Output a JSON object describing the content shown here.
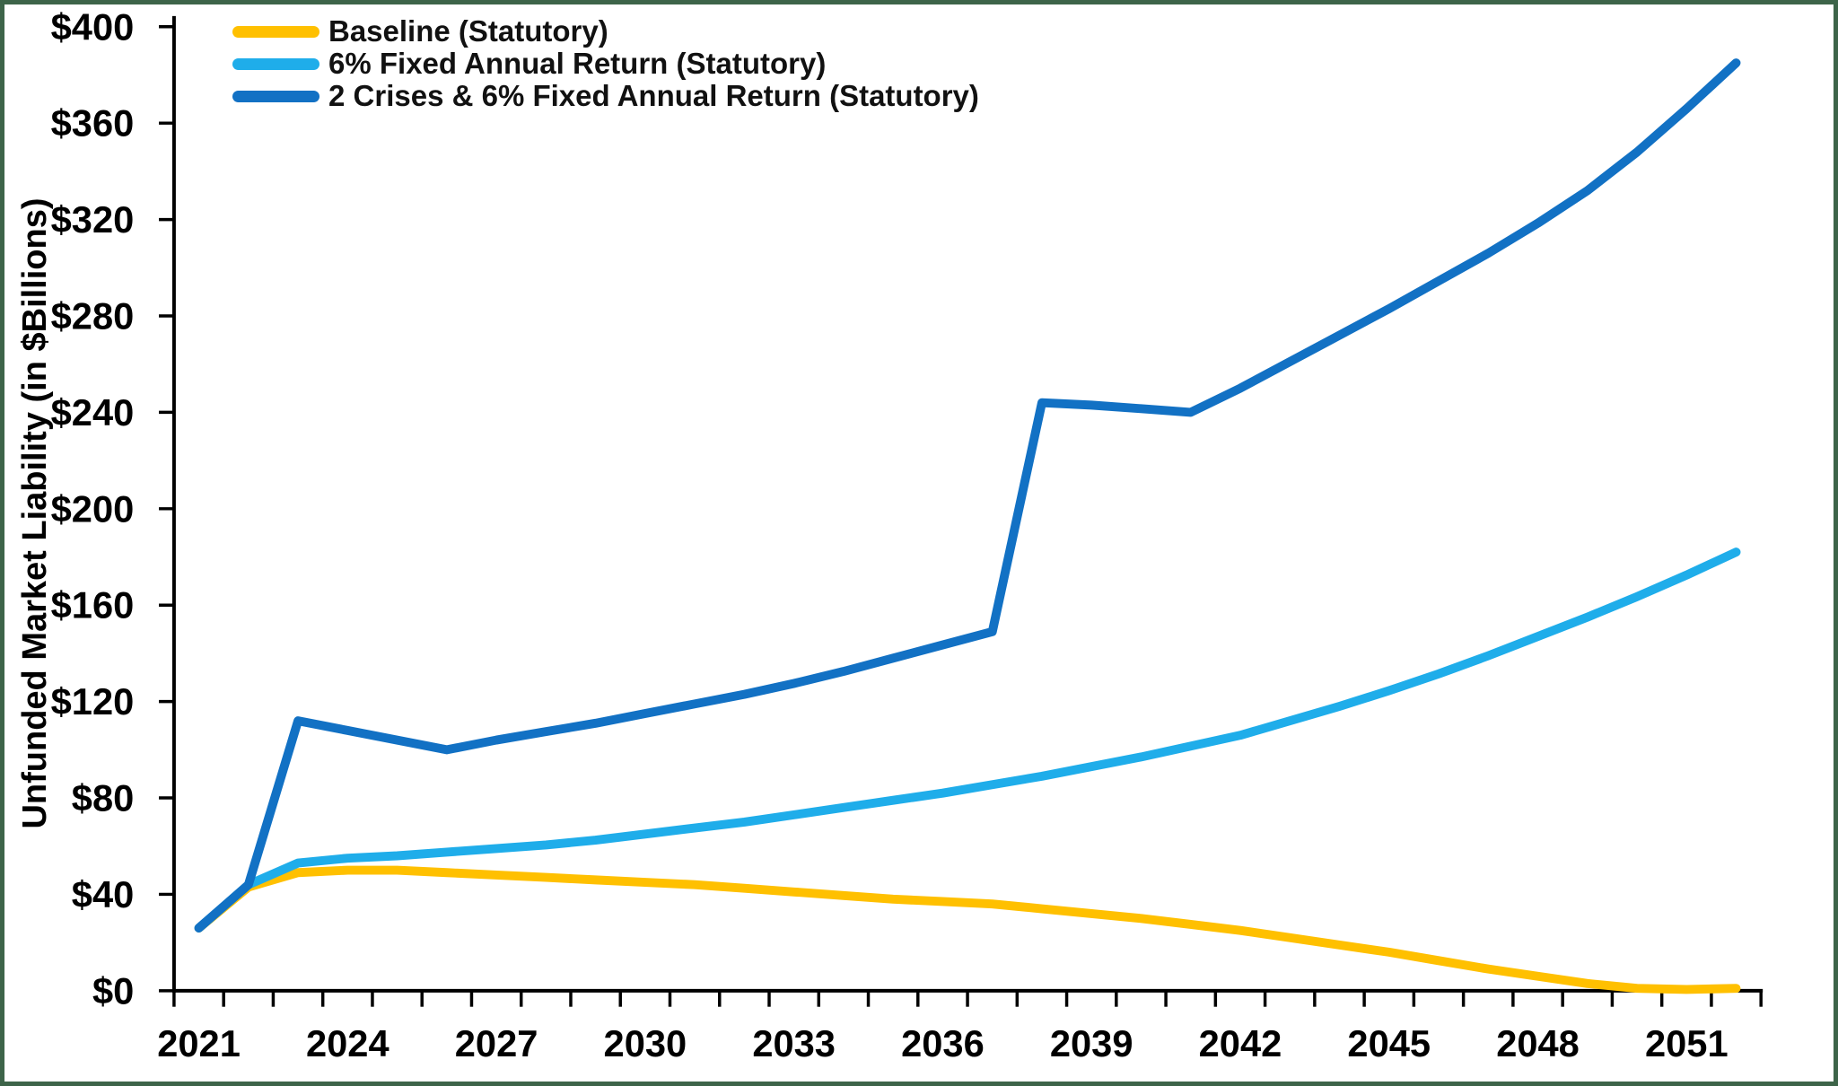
{
  "figure": {
    "background_color": "#ffffff",
    "border_color": "#3d6449",
    "axis_color": "#000000",
    "text_color": "#000000"
  },
  "chart_data": {
    "type": "line",
    "title": "",
    "xlabel": "",
    "ylabel": "Unfunded Market Liability (in $Billions)",
    "ylim": [
      0,
      400
    ],
    "ytick_step": 40,
    "grid": false,
    "legend_position": "top-left",
    "x": [
      2021,
      2022,
      2023,
      2024,
      2025,
      2026,
      2027,
      2028,
      2029,
      2030,
      2031,
      2032,
      2033,
      2034,
      2035,
      2036,
      2037,
      2038,
      2039,
      2040,
      2041,
      2042,
      2043,
      2044,
      2045,
      2046,
      2047,
      2048,
      2049,
      2050,
      2051,
      2052
    ],
    "xtick_labels": [
      "2021",
      "2024",
      "2027",
      "2030",
      "2033",
      "2036",
      "2039",
      "2042",
      "2045",
      "2048",
      "2051"
    ],
    "ytick_labels": [
      "$0",
      "$40",
      "$80",
      "$120",
      "$160",
      "$200",
      "$240",
      "$280",
      "$320",
      "$360",
      "$400"
    ],
    "series": [
      {
        "name": "Baseline (Statutory)",
        "color": "#FFC000",
        "values": [
          26,
          43,
          49,
          50,
          50,
          49,
          48,
          47,
          46,
          45,
          44,
          42.5,
          41,
          39.5,
          38,
          37,
          36,
          34,
          32,
          30,
          27.5,
          25,
          22,
          19,
          16,
          12.5,
          9,
          6,
          3,
          1,
          0.5,
          1
        ]
      },
      {
        "name": "6% Fixed Annual Return (Statutory)",
        "color": "#1FADEA",
        "values": [
          26,
          44,
          53,
          55,
          56,
          57.5,
          59,
          60.5,
          62.5,
          65,
          67.5,
          70,
          73,
          76,
          79,
          82,
          85.5,
          89,
          93,
          97,
          101.5,
          106,
          112,
          118,
          124.5,
          131.5,
          139,
          147,
          155,
          163.5,
          172.5,
          182
        ]
      },
      {
        "name": "2 Crises & 6% Fixed Annual Return (Statutory)",
        "color": "#1271C4",
        "values": [
          26,
          44,
          112,
          108,
          104,
          100,
          104,
          107.5,
          111,
          115,
          119,
          123,
          127.5,
          132.5,
          138,
          143.5,
          149,
          244,
          243,
          241.5,
          240,
          250,
          261,
          272,
          283,
          294.5,
          306,
          318.5,
          332,
          348,
          366,
          385
        ]
      }
    ]
  }
}
